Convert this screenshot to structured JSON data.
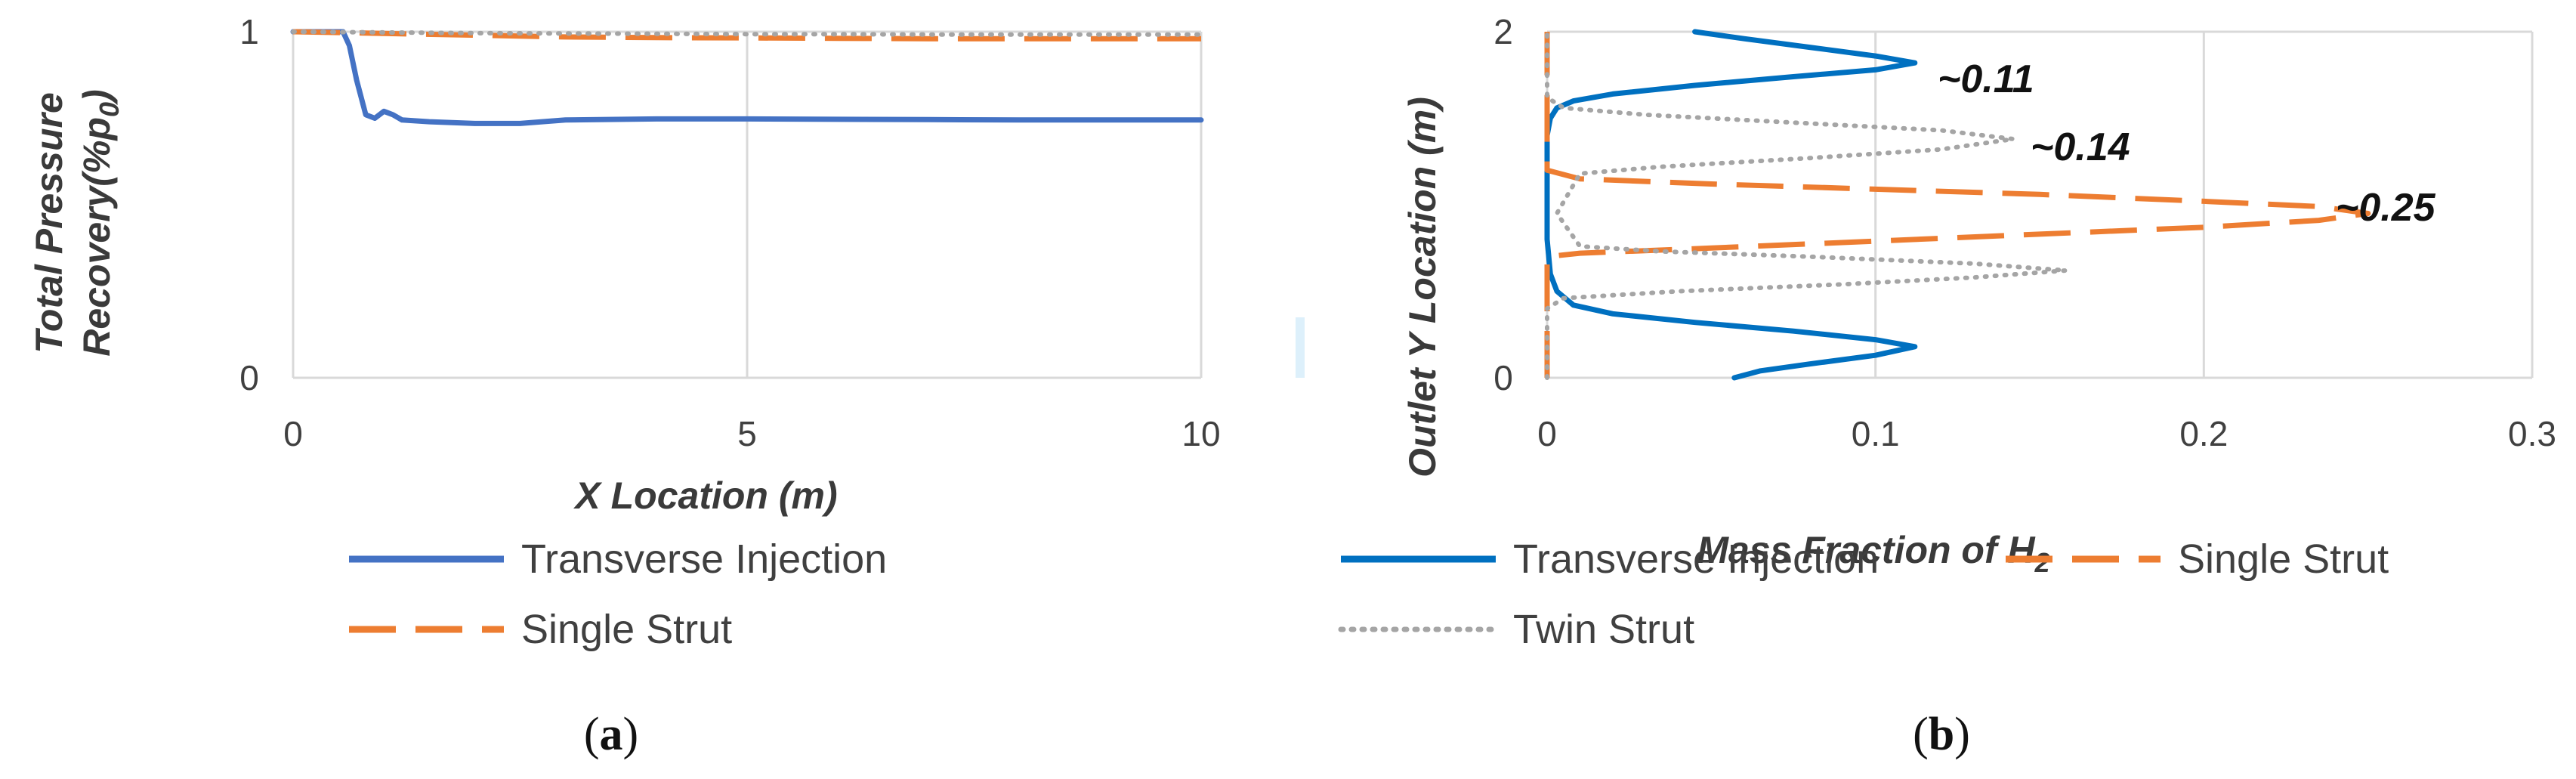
{
  "chart_data": [
    {
      "type": "line",
      "xlabel": "X Location (m)",
      "ylabel_line1": "Total Pressure",
      "ylabel_line2": "Recovery(%p",
      "ylabel_sub": "0",
      "ylabel_end": ")",
      "xlim": [
        0,
        10
      ],
      "ylim": [
        0,
        1
      ],
      "xticks": [
        "0",
        "5",
        "10"
      ],
      "yticks": [
        "0",
        "1"
      ],
      "grid": true,
      "legend_position": "bottom",
      "panel_label": "a",
      "series": [
        {
          "name": "Transverse Injection",
          "color": "#4472c4",
          "style": "solid",
          "x": [
            0,
            0.55,
            0.62,
            0.7,
            0.8,
            0.9,
            1.0,
            1.1,
            1.2,
            1.5,
            2.0,
            2.5,
            3.0,
            4.0,
            5.0,
            6.0,
            7.0,
            8.0,
            9.0,
            10.0
          ],
          "y": [
            1.0,
            1.0,
            0.96,
            0.86,
            0.76,
            0.75,
            0.77,
            0.76,
            0.745,
            0.74,
            0.735,
            0.735,
            0.745,
            0.748,
            0.748,
            0.747,
            0.746,
            0.745,
            0.745,
            0.745
          ]
        },
        {
          "name": "Single Strut",
          "color": "#ed7d31",
          "style": "dashed",
          "x": [
            0,
            1,
            2,
            3,
            4,
            5,
            6,
            7,
            8,
            9,
            10
          ],
          "y": [
            1.0,
            0.995,
            0.99,
            0.985,
            0.983,
            0.982,
            0.981,
            0.98,
            0.98,
            0.98,
            0.98
          ]
        },
        {
          "color": "#a5a5a5",
          "style": "dotted",
          "x": [
            0,
            1,
            2,
            3,
            4,
            5,
            6,
            7,
            8,
            9,
            10
          ],
          "y": [
            1.0,
            0.998,
            0.996,
            0.995,
            0.994,
            0.993,
            0.993,
            0.992,
            0.992,
            0.992,
            0.992
          ]
        }
      ]
    },
    {
      "type": "line",
      "xlabel": "Mass Fraction of H",
      "xlabel_sub": "2",
      "ylabel": "Outlet Y Location (m)",
      "xlim": [
        0,
        0.3
      ],
      "ylim": [
        0,
        2
      ],
      "xticks": [
        "0",
        "0.1",
        "0.2",
        "0.3"
      ],
      "yticks": [
        "0",
        "2"
      ],
      "grid": true,
      "legend_position": "bottom",
      "panel_label": "b",
      "annotations": [
        "~0.11",
        "~0.14",
        "~0.25"
      ],
      "series": [
        {
          "name": "Transverse Injection",
          "color": "#0070c0",
          "style": "solid",
          "x": [
            0.057,
            0.065,
            0.08,
            0.1,
            0.112,
            0.1,
            0.075,
            0.045,
            0.02,
            0.008,
            0.003,
            0.001,
            0.0,
            0.0,
            0.0,
            0.001,
            0.003,
            0.008,
            0.02,
            0.045,
            0.075,
            0.1,
            0.112,
            0.1,
            0.08,
            0.06,
            0.045
          ],
          "y": [
            0.0,
            0.04,
            0.08,
            0.13,
            0.18,
            0.22,
            0.27,
            0.32,
            0.37,
            0.42,
            0.5,
            0.6,
            0.8,
            1.2,
            1.4,
            1.5,
            1.56,
            1.6,
            1.64,
            1.69,
            1.74,
            1.78,
            1.82,
            1.86,
            1.91,
            1.96,
            2.0
          ]
        },
        {
          "name": "Single Strut",
          "color": "#ed7d31",
          "style": "dashed",
          "x": [
            0.0,
            0.0,
            0.0,
            0.0,
            0.01,
            0.05,
            0.1,
            0.15,
            0.2,
            0.235,
            0.25,
            0.235,
            0.2,
            0.15,
            0.1,
            0.05,
            0.01,
            0.0,
            0.0,
            0.0
          ],
          "y": [
            0.0,
            0.5,
            0.65,
            0.7,
            0.72,
            0.75,
            0.79,
            0.83,
            0.87,
            0.91,
            0.95,
            0.99,
            1.02,
            1.06,
            1.09,
            1.12,
            1.15,
            1.2,
            1.6,
            2.0
          ]
        },
        {
          "name": "Twin Strut",
          "color": "#a5a5a5",
          "style": "dotted",
          "x": [
            0.0,
            0.0,
            0.005,
            0.04,
            0.09,
            0.13,
            0.158,
            0.13,
            0.08,
            0.035,
            0.01,
            0.003,
            0.01,
            0.035,
            0.08,
            0.12,
            0.142,
            0.12,
            0.07,
            0.03,
            0.005,
            0.0,
            0.0
          ],
          "y": [
            0.0,
            0.4,
            0.46,
            0.5,
            0.54,
            0.58,
            0.62,
            0.66,
            0.7,
            0.73,
            0.76,
            0.95,
            1.18,
            1.22,
            1.27,
            1.32,
            1.38,
            1.43,
            1.48,
            1.52,
            1.56,
            1.62,
            2.0
          ]
        }
      ]
    }
  ]
}
